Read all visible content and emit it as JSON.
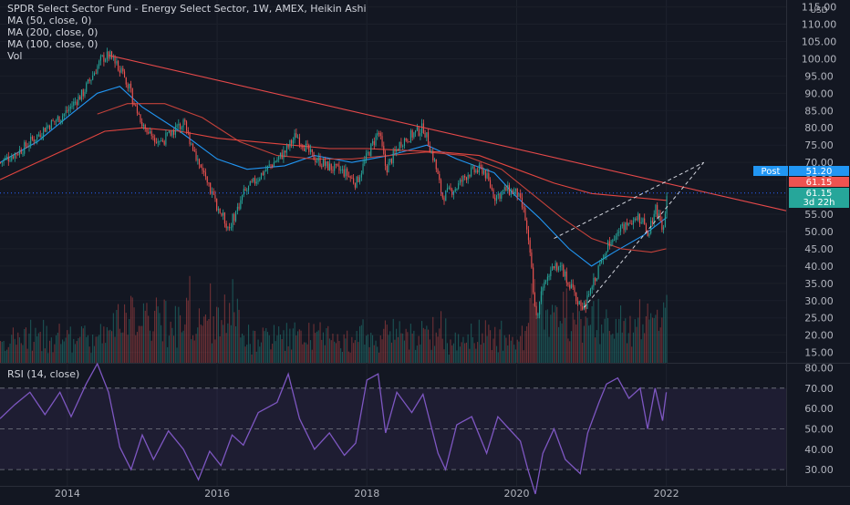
{
  "chart_data": [
    {
      "type": "candlestick",
      "title": "SPDR Select Sector Fund - Energy Select Sector, 1W, AMEX, Heikin Ashi",
      "currency_label": "USD",
      "indicators": [
        "MA (50, close, 0)",
        "MA (200, close, 0)",
        "MA (100, close, 0)",
        "Vol"
      ],
      "y_ticks": [
        "115.00",
        "110.00",
        "105.00",
        "100.00",
        "95.00",
        "90.00",
        "85.00",
        "80.00",
        "75.00",
        "70.00",
        "65.00",
        "60.00",
        "55.00",
        "50.00",
        "45.00",
        "40.00",
        "35.00",
        "30.00",
        "25.00",
        "20.00",
        "15.00"
      ],
      "x_ticks": [
        "2014",
        "2016",
        "2018",
        "2020",
        "2022"
      ],
      "ylim": [
        12,
        117
      ],
      "xlim": [
        2013.1,
        2023.6
      ],
      "price_path": [
        [
          2013.1,
          70
        ],
        [
          2013.4,
          74
        ],
        [
          2013.7,
          80
        ],
        [
          2013.95,
          84
        ],
        [
          2014.2,
          90
        ],
        [
          2014.45,
          100
        ],
        [
          2014.55,
          101
        ],
        [
          2014.75,
          96
        ],
        [
          2014.9,
          86
        ],
        [
          2015.05,
          79
        ],
        [
          2015.25,
          76
        ],
        [
          2015.45,
          80
        ],
        [
          2015.55,
          81
        ],
        [
          2015.75,
          70
        ],
        [
          2015.85,
          64
        ],
        [
          2016.05,
          55
        ],
        [
          2016.15,
          51
        ],
        [
          2016.35,
          61
        ],
        [
          2016.6,
          67
        ],
        [
          2016.9,
          73
        ],
        [
          2017.05,
          78
        ],
        [
          2017.25,
          72
        ],
        [
          2017.45,
          69
        ],
        [
          2017.7,
          67
        ],
        [
          2017.85,
          64
        ],
        [
          2018.0,
          72
        ],
        [
          2018.15,
          79
        ],
        [
          2018.25,
          68
        ],
        [
          2018.45,
          76
        ],
        [
          2018.75,
          80
        ],
        [
          2018.9,
          70
        ],
        [
          2019.0,
          60
        ],
        [
          2019.2,
          63
        ],
        [
          2019.35,
          67
        ],
        [
          2019.55,
          68
        ],
        [
          2019.7,
          60
        ],
        [
          2019.85,
          62
        ],
        [
          2020.0,
          61
        ],
        [
          2020.1,
          55
        ],
        [
          2020.2,
          38
        ],
        [
          2020.25,
          24
        ],
        [
          2020.35,
          36
        ],
        [
          2020.5,
          41
        ],
        [
          2020.6,
          39
        ],
        [
          2020.8,
          30
        ],
        [
          2020.9,
          28
        ],
        [
          2021.1,
          40
        ],
        [
          2021.25,
          48
        ],
        [
          2021.45,
          52
        ],
        [
          2021.6,
          55
        ],
        [
          2021.75,
          50
        ],
        [
          2021.85,
          57
        ],
        [
          2021.95,
          51
        ],
        [
          2022.0,
          61.15
        ]
      ],
      "ma50_path": [
        [
          2013.1,
          70
        ],
        [
          2013.6,
          76
        ],
        [
          2014.05,
          84
        ],
        [
          2014.4,
          90
        ],
        [
          2014.7,
          92
        ],
        [
          2015.0,
          86
        ],
        [
          2015.5,
          79
        ],
        [
          2016.0,
          71
        ],
        [
          2016.4,
          68
        ],
        [
          2016.9,
          69
        ],
        [
          2017.3,
          72
        ],
        [
          2017.8,
          70
        ],
        [
          2018.3,
          72
        ],
        [
          2018.8,
          75
        ],
        [
          2019.2,
          71
        ],
        [
          2019.7,
          67
        ],
        [
          2020.0,
          60
        ],
        [
          2020.3,
          54
        ],
        [
          2020.7,
          45
        ],
        [
          2021.0,
          40
        ],
        [
          2021.3,
          44
        ],
        [
          2021.7,
          49
        ],
        [
          2022.0,
          54
        ]
      ],
      "ma100_path": [
        [
          2014.4,
          84
        ],
        [
          2014.8,
          87
        ],
        [
          2015.3,
          87
        ],
        [
          2015.8,
          83
        ],
        [
          2016.3,
          76
        ],
        [
          2016.8,
          72
        ],
        [
          2017.3,
          71
        ],
        [
          2017.8,
          71
        ],
        [
          2018.3,
          72
        ],
        [
          2018.8,
          73
        ],
        [
          2019.3,
          72
        ],
        [
          2019.8,
          68
        ],
        [
          2020.2,
          61
        ],
        [
          2020.6,
          54
        ],
        [
          2021.0,
          48
        ],
        [
          2021.4,
          45
        ],
        [
          2021.8,
          44
        ],
        [
          2022.0,
          45
        ]
      ],
      "ma200_path": [
        [
          2013.1,
          65
        ],
        [
          2013.5,
          69
        ],
        [
          2014.0,
          74
        ],
        [
          2014.5,
          79
        ],
        [
          2015.0,
          80
        ],
        [
          2015.5,
          79
        ],
        [
          2016.0,
          77
        ],
        [
          2016.5,
          76
        ],
        [
          2017.0,
          75
        ],
        [
          2017.5,
          74
        ],
        [
          2018.0,
          74
        ],
        [
          2018.5,
          73.5
        ],
        [
          2019.0,
          73
        ],
        [
          2019.5,
          72
        ],
        [
          2020.0,
          68
        ],
        [
          2020.5,
          64
        ],
        [
          2021.0,
          61
        ],
        [
          2021.5,
          60
        ],
        [
          2022.0,
          59
        ]
      ],
      "trendline": [
        [
          2014.55,
          101
        ],
        [
          2023.6,
          56
        ]
      ],
      "channel_lower": [
        [
          2020.9,
          28
        ],
        [
          2022.5,
          70
        ]
      ],
      "channel_upper": [
        [
          2020.5,
          48
        ],
        [
          2022.5,
          70
        ]
      ],
      "last_price": 61.15,
      "post_label": "Post",
      "post_price": "51.20",
      "last_price_label": "61.15",
      "countdown_price": "61.15",
      "countdown": "3d 22h",
      "volume_label": "Vol"
    },
    {
      "type": "line",
      "title": "RSI (14, close)",
      "y_ticks": [
        "80.00",
        "70.00",
        "60.00",
        "50.00",
        "40.00",
        "30.00"
      ],
      "ylim": [
        22,
        82
      ],
      "bands": [
        30,
        50,
        70
      ],
      "rsi_path": [
        [
          2013.1,
          55
        ],
        [
          2013.3,
          62
        ],
        [
          2013.5,
          68
        ],
        [
          2013.7,
          57
        ],
        [
          2013.9,
          68
        ],
        [
          2014.05,
          56
        ],
        [
          2014.25,
          72
        ],
        [
          2014.4,
          82
        ],
        [
          2014.55,
          68
        ],
        [
          2014.7,
          41
        ],
        [
          2014.85,
          30
        ],
        [
          2015.0,
          47
        ],
        [
          2015.15,
          35
        ],
        [
          2015.35,
          49
        ],
        [
          2015.55,
          40
        ],
        [
          2015.75,
          25
        ],
        [
          2015.9,
          39
        ],
        [
          2016.05,
          32
        ],
        [
          2016.2,
          47
        ],
        [
          2016.35,
          42
        ],
        [
          2016.55,
          58
        ],
        [
          2016.8,
          63
        ],
        [
          2016.95,
          77
        ],
        [
          2017.1,
          55
        ],
        [
          2017.3,
          40
        ],
        [
          2017.5,
          48
        ],
        [
          2017.7,
          37
        ],
        [
          2017.85,
          43
        ],
        [
          2018.0,
          74
        ],
        [
          2018.15,
          77
        ],
        [
          2018.25,
          48
        ],
        [
          2018.4,
          68
        ],
        [
          2018.6,
          58
        ],
        [
          2018.75,
          67
        ],
        [
          2018.95,
          38
        ],
        [
          2019.05,
          30
        ],
        [
          2019.2,
          52
        ],
        [
          2019.4,
          56
        ],
        [
          2019.6,
          38
        ],
        [
          2019.75,
          56
        ],
        [
          2019.9,
          50
        ],
        [
          2020.05,
          44
        ],
        [
          2020.15,
          30
        ],
        [
          2020.25,
          18
        ],
        [
          2020.35,
          38
        ],
        [
          2020.5,
          50
        ],
        [
          2020.65,
          35
        ],
        [
          2020.85,
          28
        ],
        [
          2020.95,
          48
        ],
        [
          2021.1,
          63
        ],
        [
          2021.2,
          72
        ],
        [
          2021.35,
          75
        ],
        [
          2021.5,
          65
        ],
        [
          2021.65,
          70
        ],
        [
          2021.75,
          50
        ],
        [
          2021.85,
          70
        ],
        [
          2021.95,
          54
        ],
        [
          2022.0,
          68
        ]
      ]
    }
  ]
}
